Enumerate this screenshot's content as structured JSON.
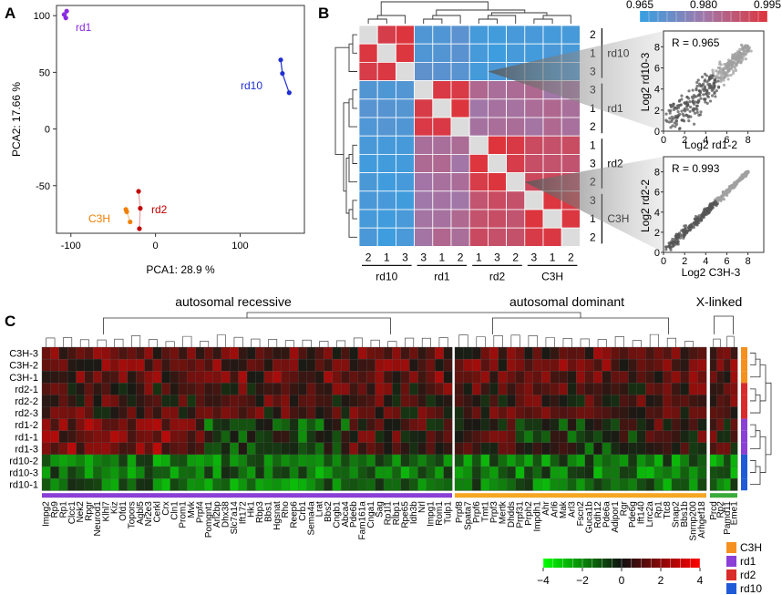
{
  "panels": {
    "a": "A",
    "b": "B",
    "c": "C"
  },
  "pca": {
    "chart_data": {
      "type": "scatter",
      "xlabel": "PCA1: 28.9 %",
      "ylabel": "PCA2: 17.66 %",
      "xlim": [
        -117,
        176
      ],
      "ylim": [
        -92,
        109
      ],
      "xticks": [
        -100,
        0,
        100
      ],
      "yticks": [
        -50,
        0,
        50,
        100
      ],
      "series": [
        {
          "name": "rd1",
          "color": "#8a2be2",
          "points": [
            [
              -108,
              101
            ],
            [
              -106,
              98
            ],
            [
              -105,
              104
            ]
          ]
        },
        {
          "name": "rd10",
          "color": "#1f2fd1",
          "points": [
            [
              148,
              61
            ],
            [
              150,
              49
            ],
            [
              158,
              32
            ]
          ]
        },
        {
          "name": "rd2",
          "color": "#c00000",
          "points": [
            [
              -20,
              -55
            ],
            [
              -18,
              -70
            ],
            [
              -19,
              -88
            ]
          ]
        },
        {
          "name": "C3H",
          "color": "#f07f00",
          "points": [
            [
              -35,
              -71
            ],
            [
              -34,
              -73
            ],
            [
              -30,
              -82
            ]
          ]
        }
      ]
    },
    "labels": {
      "rd1": "rd1",
      "rd10": "rd10",
      "rd2": "rd2",
      "c3h": "C3H"
    }
  },
  "correlation": {
    "colorbar": {
      "ticks": [
        "0.965",
        "0.980",
        "0.995"
      ]
    },
    "row_reps": [
      "2",
      "1",
      "3",
      "3",
      "1",
      "2",
      "1",
      "3",
      "2",
      "3",
      "1",
      "2"
    ],
    "row_groups": [
      "rd10",
      "rd1",
      "rd2",
      "C3H"
    ],
    "col_reps": [
      "2",
      "1",
      "3",
      "3",
      "1",
      "2",
      "1",
      "3",
      "2",
      "3",
      "1",
      "2"
    ],
    "col_groups": [
      "rd10",
      "rd1",
      "rd2",
      "C3H"
    ],
    "scatter1": {
      "r_label": "R = 0.965",
      "xlabel": "Log2  rd1-2",
      "ylabel": "Log2 rd10-3",
      "ticks": [
        "0",
        "2",
        "4",
        "6",
        "8"
      ]
    },
    "scatter2": {
      "r_label": "R = 0.993",
      "xlabel": "Log2  C3H-3",
      "ylabel": "Log2 rd2-2",
      "ticks": [
        "0",
        "2",
        "4",
        "6",
        "8"
      ]
    }
  },
  "heatmap": {
    "group_titles": [
      "autosomal recessive",
      "autosomal dominant",
      "X-linked"
    ],
    "row_labels": [
      "C3H-3",
      "C3H-2",
      "C3H-1",
      "rd2-1",
      "rd2-2",
      "rd2-3",
      "rd1-2",
      "rd1-1",
      "rd1-3",
      "rd10-2",
      "rd10-3",
      "rd10-1"
    ],
    "genes_ar": [
      "Impg2",
      "Rp9",
      "Rp1",
      "Clcc1",
      "Nek2",
      "Rpgr",
      "Neurod1",
      "Klhl7",
      "Kiz",
      "Ofd1",
      "Topors",
      "Agbl5",
      "Nr2e3",
      "Cerkl",
      "Crx",
      "Cln1",
      "Prom1",
      "Mvk",
      "Prpf4",
      "Pomgnt1",
      "Arl2bp",
      "Dhx38",
      "Slc7a14",
      "Ift172",
      "Hk1",
      "Rbp3",
      "Bbs1",
      "Hgsnat",
      "Rho",
      "Reep6",
      "Crb1",
      "Sema4a",
      "Lrat",
      "Bbs2",
      "Cngb1",
      "Abca4",
      "Pde6b",
      "Fam161a",
      "Cnga1",
      "Sag",
      "Rp1l1",
      "Rlbp1",
      "Rpe65",
      "Idh3b",
      "Nrl",
      "Impg1",
      "Rom1",
      "Tulp1"
    ],
    "genes_ad": [
      "Prpf8",
      "Spata7",
      "Prpf6",
      "Tmt1",
      "Prpf3",
      "Mertk",
      "Dhdds",
      "Prpf31",
      "Prph2",
      "Impdh1",
      "Ahr",
      "Arl6",
      "Mak",
      "Arl3",
      "Fscn2",
      "Guca1b",
      "Rdh12",
      "Pde6a",
      "Adipor1",
      "Rgr",
      "Pde6g",
      "Ift140",
      "Lrrc2a",
      "Rp1",
      "Ttc8",
      "Snap2",
      "Bbs1b",
      "Snrnp200",
      "Arhgef18"
    ],
    "genes_xl": [
      "Prcd",
      "Rp2",
      "Pamd11",
      "Eme1"
    ],
    "legend": [
      {
        "label": "C3H",
        "color": "#f5901e"
      },
      {
        "label": "rd1",
        "color": "#8a3fd6"
      },
      {
        "label": "rd2",
        "color": "#d92b2b"
      },
      {
        "label": "rd10",
        "color": "#1f5bd6"
      }
    ],
    "colorbar_ticks": [
      "−4",
      "−2",
      "0",
      "2",
      "4"
    ]
  }
}
